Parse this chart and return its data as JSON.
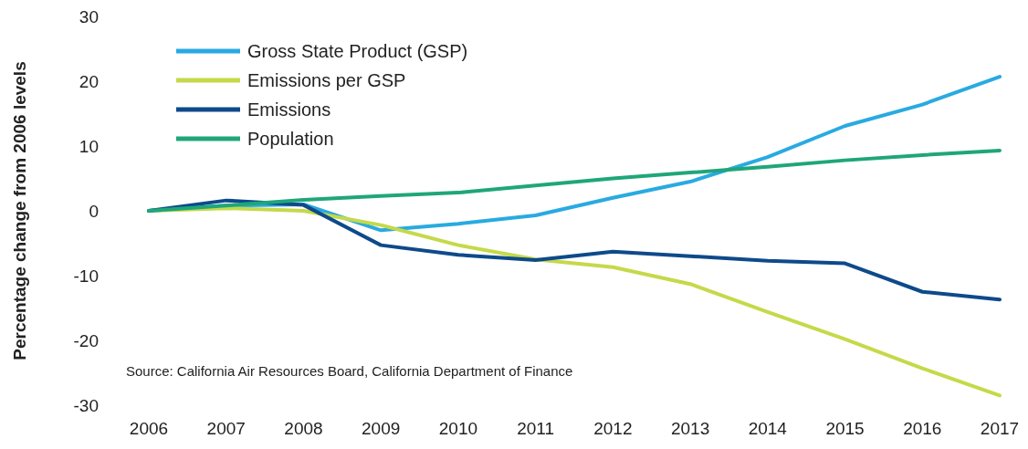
{
  "chart_data": {
    "type": "line",
    "ylabel": "Percentage change from 2006 levels",
    "x": [
      2006,
      2007,
      2008,
      2009,
      2010,
      2011,
      2012,
      2013,
      2014,
      2015,
      2016,
      2017
    ],
    "xlim": [
      2006,
      2017
    ],
    "xticks": [
      2006,
      2007,
      2008,
      2009,
      2010,
      2011,
      2012,
      2013,
      2014,
      2015,
      2016,
      2017
    ],
    "ylim": [
      -30,
      30
    ],
    "yticks": [
      -30,
      -20,
      -10,
      0,
      10,
      20,
      30
    ],
    "grid": false,
    "legend": "top left",
    "marker": "none",
    "line_style": "solid",
    "series": [
      {
        "name": "Gross State Product (GSP)",
        "color": "#29aae1",
        "values": [
          0,
          0.8,
          1,
          -3,
          -2,
          -0.7,
          2,
          4.5,
          8.3,
          13.1,
          16.4,
          20.7
        ]
      },
      {
        "name": "Emissions per GSP",
        "color": "#c5d94a",
        "values": [
          0,
          0.4,
          0,
          -2.2,
          -5.3,
          -7.5,
          -8.7,
          -11.3,
          -15.6,
          -19.8,
          -24.3,
          -28.5
        ]
      },
      {
        "name": "Emissions",
        "color": "#0e4a8a",
        "values": [
          0,
          1.6,
          0.9,
          -5.3,
          -6.8,
          -7.6,
          -6.3,
          -7,
          -7.7,
          -8.1,
          -12.5,
          -13.7
        ]
      },
      {
        "name": "Population",
        "color": "#1fa67a",
        "values": [
          0,
          0.8,
          1.7,
          2.3,
          2.8,
          3.9,
          5,
          5.9,
          6.8,
          7.8,
          8.6,
          9.3
        ]
      }
    ],
    "annotations": [
      "Source: California Air Resources Board, California Department of Finance"
    ]
  }
}
